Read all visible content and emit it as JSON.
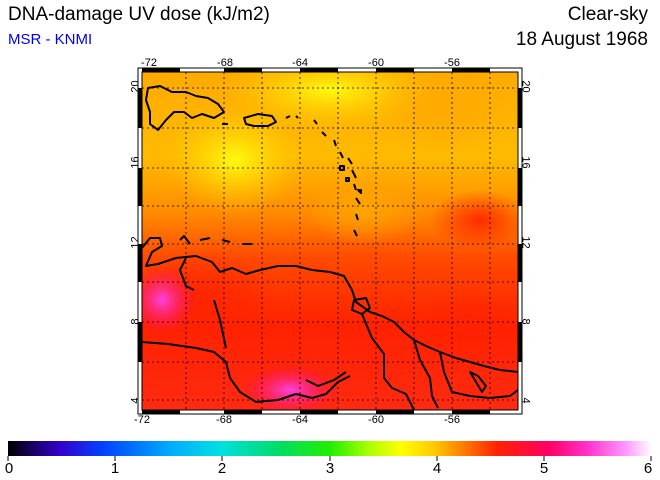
{
  "header": {
    "title": "DNA-damage UV dose (kJ/m2)",
    "source": "MSR - KNMI",
    "sky_condition": "Clear-sky",
    "date": "18 August 1968"
  },
  "colors": {
    "source_text": "#0000ee"
  },
  "map": {
    "lon_ticks": [
      "-72",
      "-68",
      "-64",
      "-60",
      "-56"
    ],
    "lat_ticks": [
      "20",
      "16",
      "12",
      "8",
      "4"
    ],
    "lon_range": [
      -72.2,
      -52.2
    ],
    "lat_range": [
      3.6,
      20.5
    ],
    "grid": true,
    "coastlines": true
  },
  "colorbar": {
    "labels": [
      "0",
      "1",
      "2",
      "3",
      "4",
      "5",
      "6"
    ],
    "range": [
      0,
      6
    ],
    "colors": [
      "#000000",
      "#3300cc",
      "#0044ff",
      "#00aaff",
      "#00e0e0",
      "#00dd66",
      "#22ee00",
      "#aaff00",
      "#ffff00",
      "#ffcc00",
      "#ff8800",
      "#ff2200",
      "#ff0066",
      "#ff33cc",
      "#ff99ff",
      "#ffffff"
    ]
  }
}
